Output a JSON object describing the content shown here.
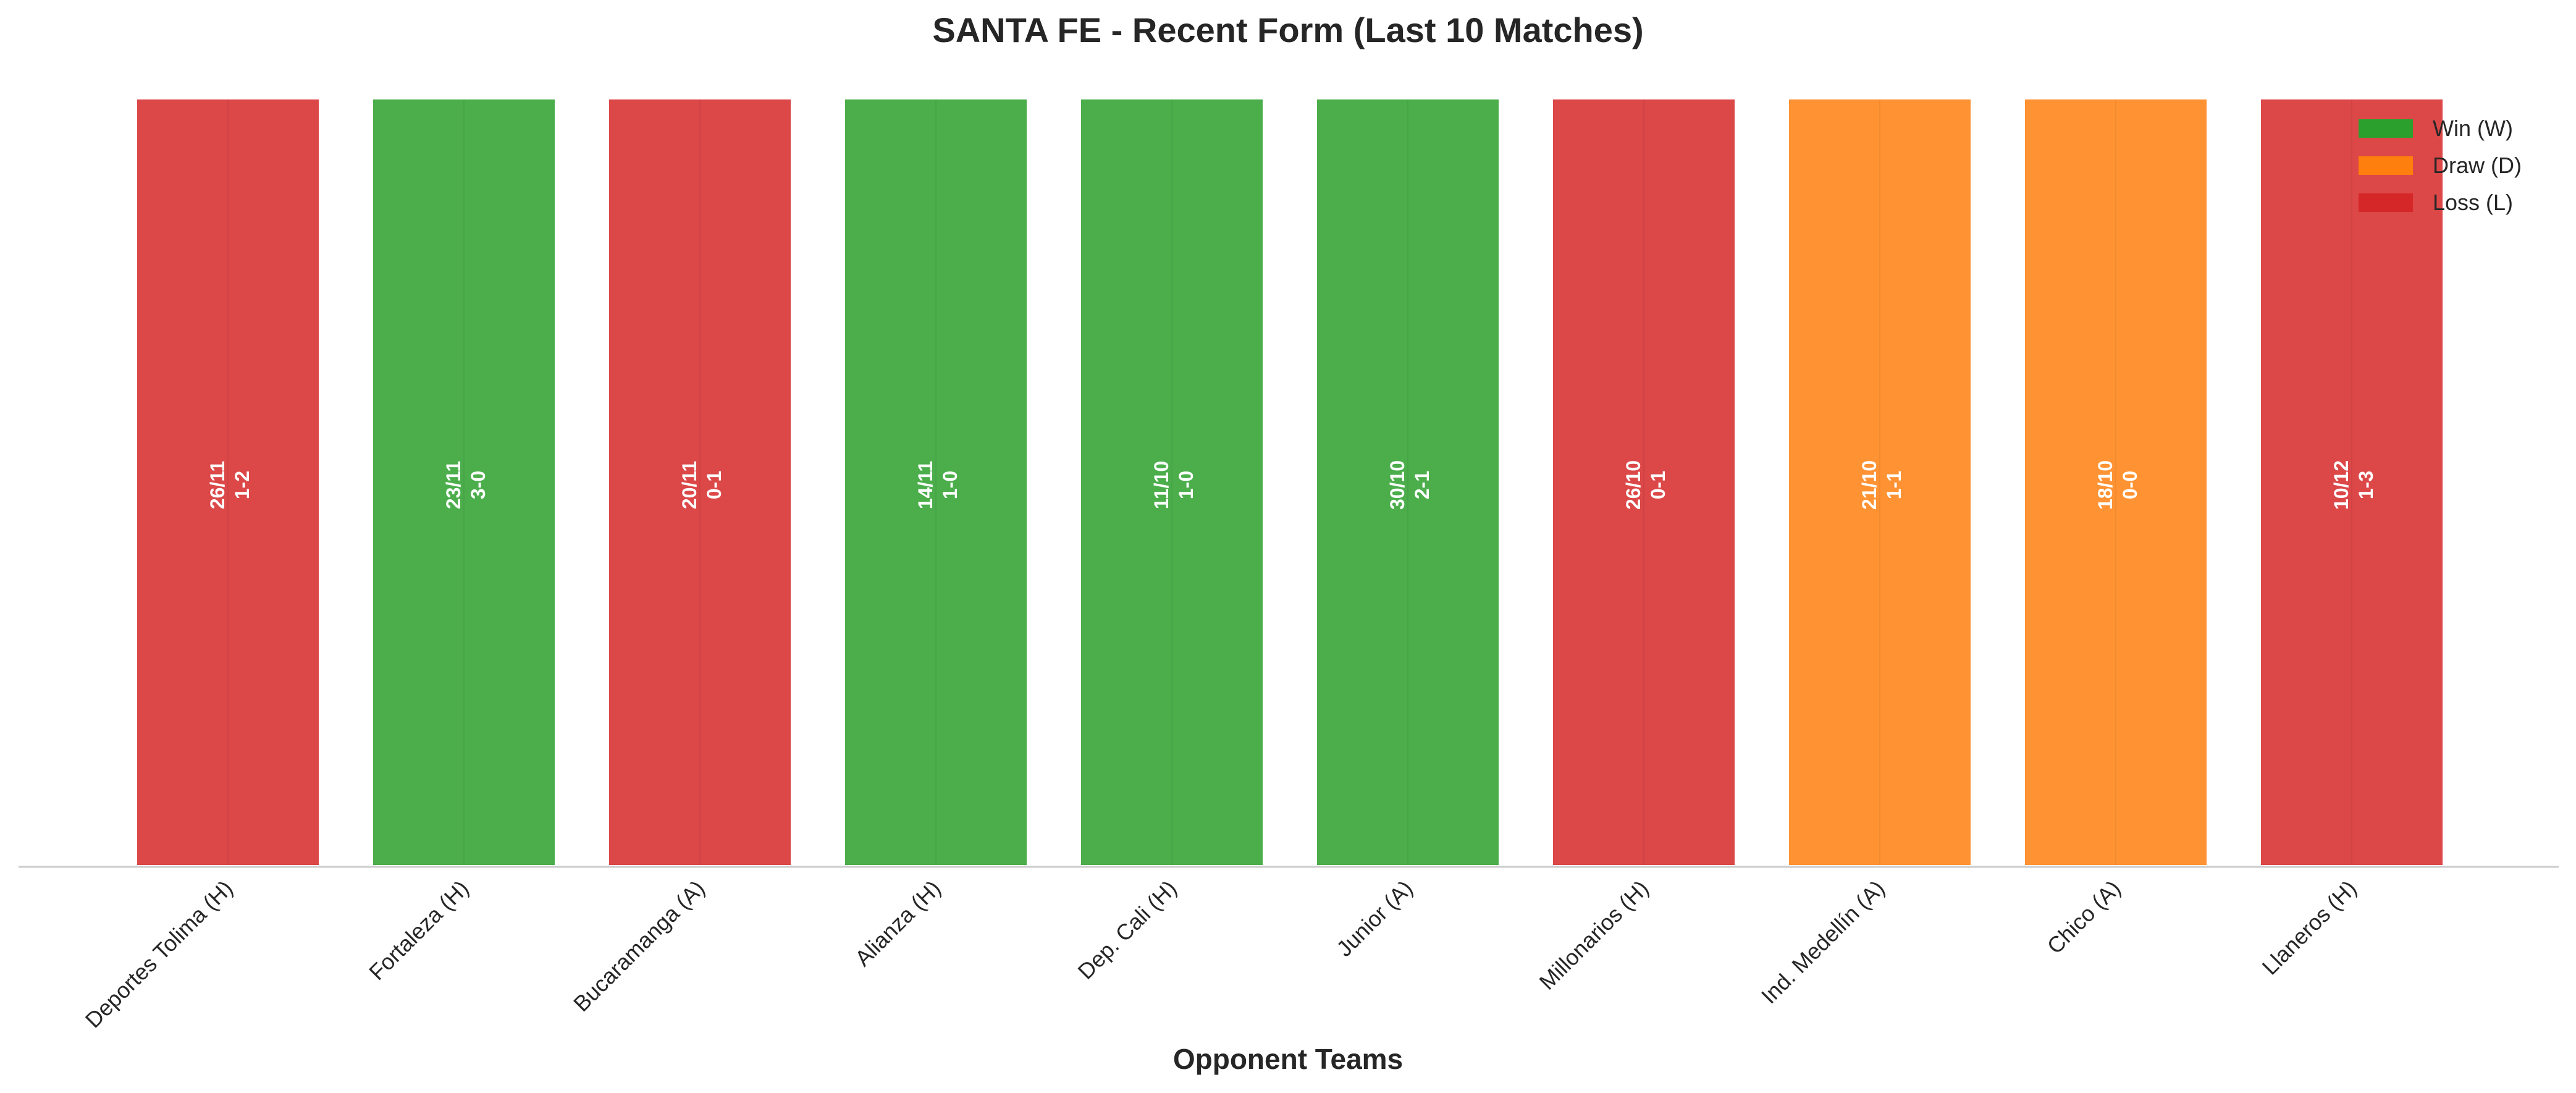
{
  "chart_data": {
    "type": "bar",
    "title": "SANTA FE - Recent Form (Last 10 Matches)",
    "xlabel": "Opponent Teams",
    "ylabel": "",
    "categories": [
      "Deportes Tolima (H)",
      "Fortaleza (H)",
      "Bucaramanga (A)",
      "Alianza (H)",
      "Dep. Cali (H)",
      "Junior (A)",
      "Millonarios (H)",
      "Ind. Medellín (A)",
      "Chico (A)",
      "Llaneros (H)"
    ],
    "values": [
      1,
      1,
      1,
      1,
      1,
      1,
      1,
      1,
      1,
      1
    ],
    "results": [
      "L",
      "W",
      "L",
      "W",
      "W",
      "W",
      "L",
      "D",
      "D",
      "L"
    ],
    "dates": [
      "26/11",
      "23/11",
      "20/11",
      "14/11",
      "11/10",
      "30/10",
      "26/10",
      "21/10",
      "18/10",
      "10/12"
    ],
    "scores": [
      "1-2",
      "3-0",
      "0-1",
      "1-0",
      "1-0",
      "2-1",
      "0-1",
      "1-1",
      "0-0",
      "1-3"
    ],
    "legend": [
      {
        "key": "W",
        "label": "Win (W)",
        "color": "#2ca02c"
      },
      {
        "key": "D",
        "label": "Draw (D)",
        "color": "#ff7f0e"
      },
      {
        "key": "L",
        "label": "Loss (L)",
        "color": "#d62728"
      }
    ],
    "legend_position": "top-right",
    "ylim": [
      0,
      1
    ],
    "grid": false
  }
}
